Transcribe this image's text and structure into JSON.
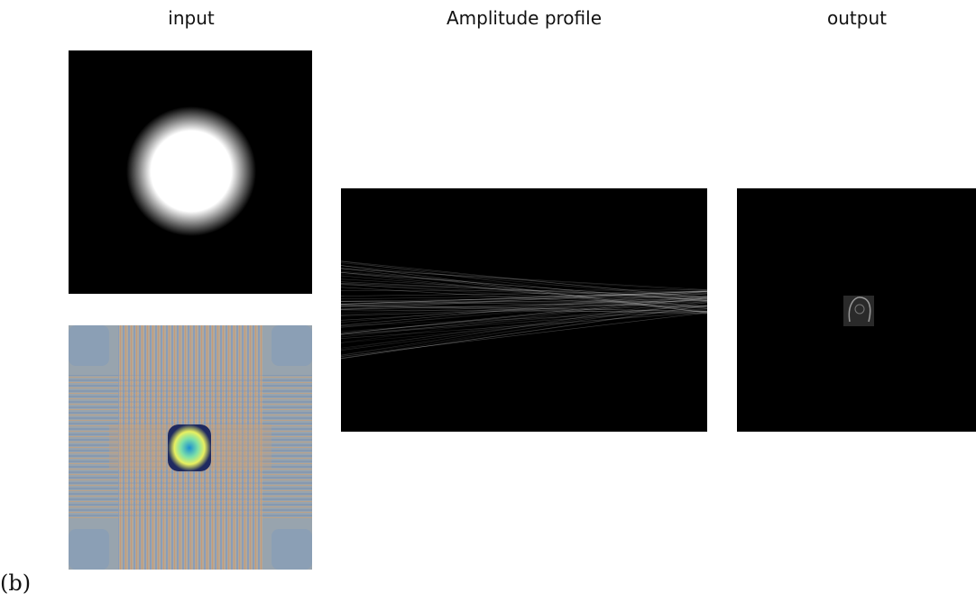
{
  "header": {
    "input": "input",
    "amplitude": "Amplitude profile",
    "output": "output"
  },
  "panel_label": "(b)"
}
